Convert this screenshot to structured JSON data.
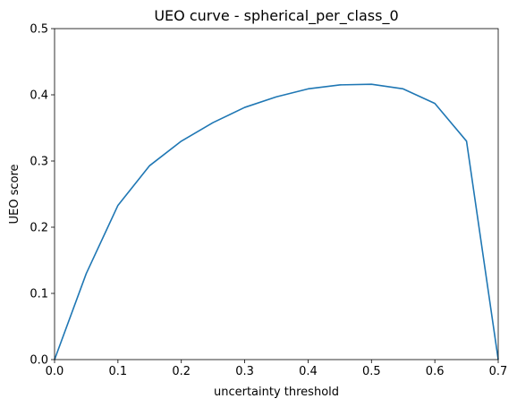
{
  "chart_data": {
    "type": "line",
    "title": "UEO curve - spherical_per_class_0",
    "xlabel": "uncertainty threshold",
    "ylabel": "UEO score",
    "xlim": [
      0.0,
      0.7
    ],
    "ylim": [
      0.0,
      0.5
    ],
    "xticks": [
      "0.0",
      "0.1",
      "0.2",
      "0.3",
      "0.4",
      "0.5",
      "0.6",
      "0.7"
    ],
    "yticks": [
      "0.0",
      "0.1",
      "0.2",
      "0.3",
      "0.4",
      "0.5"
    ],
    "grid": false,
    "series": [
      {
        "color": "#1f77b4",
        "x": [
          0.0,
          0.05,
          0.1,
          0.15,
          0.2,
          0.25,
          0.3,
          0.35,
          0.4,
          0.45,
          0.5,
          0.55,
          0.6,
          0.65,
          0.7
        ],
        "y": [
          0.0,
          0.13,
          0.233,
          0.293,
          0.33,
          0.358,
          0.381,
          0.397,
          0.409,
          0.415,
          0.416,
          0.409,
          0.387,
          0.33,
          0.0
        ]
      }
    ]
  }
}
